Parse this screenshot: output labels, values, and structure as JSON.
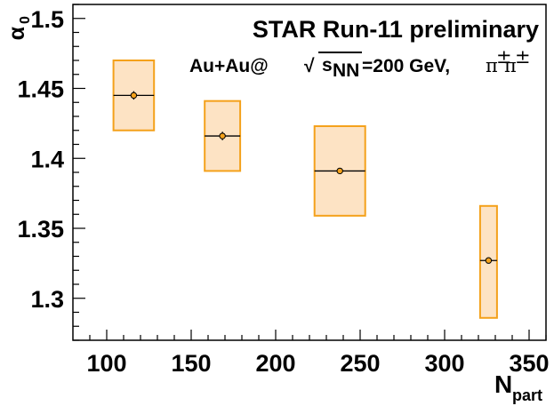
{
  "chart_data": {
    "type": "scatter",
    "title": "STAR Run-11 preliminary",
    "annotation": {
      "system": "Au+Au@",
      "sqrt_symbol": "√",
      "s_var": "s",
      "s_sub": "NN",
      "energy": "=200 GeV,",
      "particles_base": "π",
      "particles_sup": "±",
      "particles_base2": "π",
      "particles_sup2": "±"
    },
    "xlabel": {
      "main": "N",
      "sub": "part"
    },
    "ylabel": {
      "main": "α",
      "sub": "0"
    },
    "xlim": [
      80,
      360
    ],
    "ylim": [
      1.27,
      1.51
    ],
    "x_ticks": [
      "100",
      "150",
      "200",
      "250",
      "300",
      "350"
    ],
    "y_ticks": [
      "1.3",
      "1.35",
      "1.4",
      "1.45",
      "1.5"
    ],
    "series": [
      {
        "points": [
          {
            "x": 116,
            "y": 1.445,
            "xerr": 12,
            "yerr_stat": 0.003,
            "sys_low": 1.42,
            "sys_high": 1.47
          },
          {
            "x": 168.5,
            "y": 1.416,
            "xerr": 10.5,
            "yerr_stat": 0.003,
            "sys_low": 1.391,
            "sys_high": 1.441
          },
          {
            "x": 238,
            "y": 1.391,
            "xerr": 15,
            "yerr_stat": 0.002,
            "sys_low": 1.359,
            "sys_high": 1.423
          },
          {
            "x": 326,
            "y": 1.327,
            "xerr": 5,
            "yerr_stat": 0.002,
            "sys_low": 1.286,
            "sys_high": 1.366
          }
        ]
      }
    ],
    "colors": {
      "box_fill": "#fde3c4",
      "box_stroke": "#f4a11b",
      "marker_fill": "#f4a11b",
      "axis": "#000000"
    }
  }
}
